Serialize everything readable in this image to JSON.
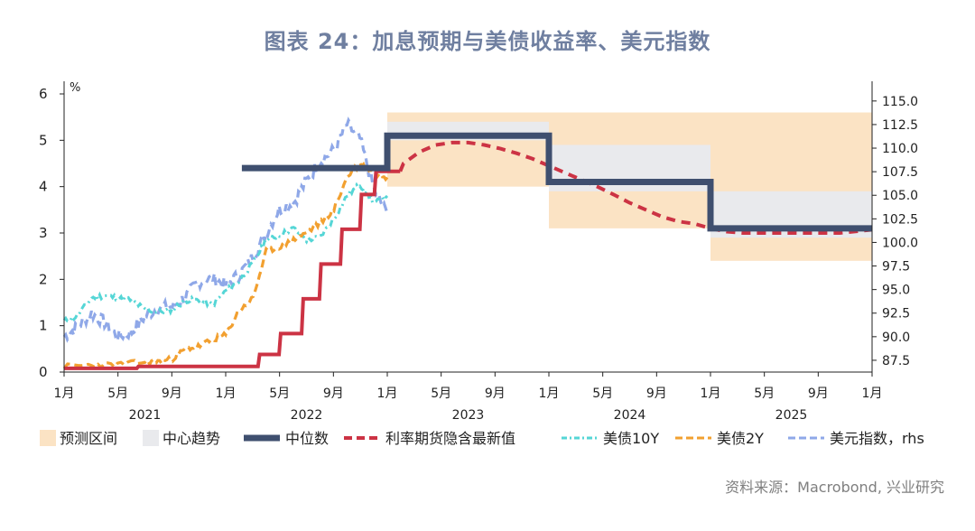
{
  "chart_data": {
    "type": "line",
    "title": "图表 24：加息预期与美债收益率、美元指数",
    "y_left_unit": "%",
    "y_left_range": [
      0,
      6
    ],
    "y_left_ticks": [
      "0",
      "1",
      "2",
      "3",
      "4",
      "5",
      "6"
    ],
    "y_right_range": [
      86.25,
      115.75
    ],
    "y_right_ticks": [
      "87.5",
      "90.0",
      "92.5",
      "95.0",
      "97.5",
      "100.0",
      "102.5",
      "105.0",
      "107.5",
      "110.0",
      "112.5",
      "115.0"
    ],
    "x_range": [
      "2021-01",
      "2026-01"
    ],
    "x_tick_labels": [
      "1月",
      "5月",
      "9月",
      "1月",
      "5月",
      "9月",
      "1月",
      "5月",
      "9月",
      "1月",
      "5月",
      "9月",
      "1月",
      "5月",
      "9月",
      "1月"
    ],
    "x_year_labels": [
      "2021",
      "2022",
      "2023",
      "2024",
      "2025"
    ],
    "legend": {
      "placement": "bottom",
      "entries": [
        "预测区间",
        "中心趋势",
        "中位数",
        "利率期货隐含最新值",
        "美债10Y",
        "美债2Y",
        "美元指数，rhs"
      ]
    },
    "colors": {
      "forecast_range": "#fbe3c4",
      "central_tendency": "#e9eaed",
      "median": "#3f4f6f",
      "futures": "#cc3344",
      "ust10y": "#55d6d6",
      "ust2y": "#f2a030",
      "dxy": "#8fa8e8"
    },
    "forecast_range": [
      {
        "x_start": 2023.0,
        "x_end": 2024.0,
        "low": 4.0,
        "high": 5.6
      },
      {
        "x_start": 2024.0,
        "x_end": 2025.0,
        "low": 3.1,
        "high": 5.6
      },
      {
        "x_start": 2025.0,
        "x_end": 2026.0,
        "low": 2.4,
        "high": 5.6
      }
    ],
    "central_tendency": [
      {
        "x_start": 2023.0,
        "x_end": 2024.0,
        "low": 5.0,
        "high": 5.4
      },
      {
        "x_start": 2024.0,
        "x_end": 2025.0,
        "low": 3.9,
        "high": 4.9
      },
      {
        "x_start": 2025.0,
        "x_end": 2026.0,
        "low": 2.9,
        "high": 3.9
      }
    ],
    "median_dots": [
      {
        "x_start": 2022.0,
        "x_end": 2023.0,
        "value": 4.4
      },
      {
        "x_start": 2023.0,
        "x_end": 2024.0,
        "value": 5.1
      },
      {
        "x_start": 2024.0,
        "x_end": 2025.0,
        "value": 4.1
      },
      {
        "x_start": 2025.0,
        "x_end": 2026.0,
        "value": 3.1
      }
    ],
    "futures_implied": [
      [
        2021.0,
        0.08
      ],
      [
        2021.2,
        0.08
      ],
      [
        2021.45,
        0.08
      ],
      [
        2021.46,
        0.12
      ],
      [
        2022.0,
        0.12
      ],
      [
        2022.2,
        0.12
      ],
      [
        2022.21,
        0.38
      ],
      [
        2022.33,
        0.38
      ],
      [
        2022.34,
        0.83
      ],
      [
        2022.47,
        0.83
      ],
      [
        2022.48,
        1.58
      ],
      [
        2022.58,
        1.58
      ],
      [
        2022.59,
        2.33
      ],
      [
        2022.71,
        2.33
      ],
      [
        2022.72,
        3.08
      ],
      [
        2022.83,
        3.08
      ],
      [
        2022.84,
        3.83
      ],
      [
        2022.92,
        3.83
      ],
      [
        2022.93,
        4.33
      ],
      [
        2023.08,
        4.33
      ],
      [
        2023.1,
        4.5
      ],
      [
        2023.2,
        4.75
      ],
      [
        2023.3,
        4.9
      ],
      [
        2023.4,
        4.95
      ],
      [
        2023.5,
        4.95
      ],
      [
        2023.6,
        4.9
      ],
      [
        2023.7,
        4.82
      ],
      [
        2023.8,
        4.72
      ],
      [
        2023.9,
        4.6
      ],
      [
        2024.0,
        4.45
      ],
      [
        2024.1,
        4.3
      ],
      [
        2024.2,
        4.15
      ],
      [
        2024.3,
        4.0
      ],
      [
        2024.4,
        3.83
      ],
      [
        2024.5,
        3.65
      ],
      [
        2024.6,
        3.5
      ],
      [
        2024.7,
        3.35
      ],
      [
        2024.8,
        3.25
      ],
      [
        2024.9,
        3.2
      ],
      [
        2025.0,
        3.1
      ],
      [
        2025.1,
        3.03
      ],
      [
        2025.2,
        3.0
      ],
      [
        2025.5,
        3.0
      ],
      [
        2025.8,
        3.0
      ],
      [
        2026.0,
        3.07
      ]
    ],
    "ust10y": [
      [
        2021.0,
        1.1
      ],
      [
        2021.08,
        1.2
      ],
      [
        2021.17,
        1.6
      ],
      [
        2021.25,
        1.65
      ],
      [
        2021.33,
        1.6
      ],
      [
        2021.42,
        1.55
      ],
      [
        2021.5,
        1.35
      ],
      [
        2021.58,
        1.3
      ],
      [
        2021.67,
        1.35
      ],
      [
        2021.75,
        1.55
      ],
      [
        2021.83,
        1.55
      ],
      [
        2021.92,
        1.45
      ],
      [
        2022.0,
        1.75
      ],
      [
        2022.08,
        1.95
      ],
      [
        2022.17,
        2.35
      ],
      [
        2022.25,
        2.85
      ],
      [
        2022.33,
        2.95
      ],
      [
        2022.42,
        3.1
      ],
      [
        2022.5,
        2.85
      ],
      [
        2022.58,
        2.9
      ],
      [
        2022.67,
        3.3
      ],
      [
        2022.75,
        3.8
      ],
      [
        2022.83,
        4.05
      ],
      [
        2022.92,
        3.65
      ],
      [
        2023.0,
        3.8
      ]
    ],
    "ust2y": [
      [
        2021.0,
        0.12
      ],
      [
        2021.17,
        0.15
      ],
      [
        2021.33,
        0.16
      ],
      [
        2021.5,
        0.22
      ],
      [
        2021.58,
        0.22
      ],
      [
        2021.67,
        0.28
      ],
      [
        2021.75,
        0.5
      ],
      [
        2021.83,
        0.55
      ],
      [
        2021.92,
        0.7
      ],
      [
        2022.0,
        0.8
      ],
      [
        2022.08,
        1.3
      ],
      [
        2022.17,
        1.6
      ],
      [
        2022.25,
        2.6
      ],
      [
        2022.33,
        2.7
      ],
      [
        2022.42,
        2.85
      ],
      [
        2022.5,
        3.0
      ],
      [
        2022.58,
        3.2
      ],
      [
        2022.67,
        3.5
      ],
      [
        2022.75,
        4.2
      ],
      [
        2022.83,
        4.5
      ],
      [
        2022.92,
        4.3
      ],
      [
        2023.0,
        4.2
      ]
    ],
    "dxy": [
      [
        2021.0,
        90.0
      ],
      [
        2021.08,
        91.0
      ],
      [
        2021.17,
        92.5
      ],
      [
        2021.25,
        91.5
      ],
      [
        2021.33,
        90.0
      ],
      [
        2021.42,
        90.5
      ],
      [
        2021.5,
        92.2
      ],
      [
        2021.58,
        93.0
      ],
      [
        2021.67,
        93.2
      ],
      [
        2021.75,
        94.2
      ],
      [
        2021.83,
        95.8
      ],
      [
        2021.92,
        96.2
      ],
      [
        2022.0,
        95.5
      ],
      [
        2022.08,
        96.5
      ],
      [
        2022.17,
        98.5
      ],
      [
        2022.25,
        101.0
      ],
      [
        2022.33,
        103.5
      ],
      [
        2022.42,
        104.2
      ],
      [
        2022.5,
        106.5
      ],
      [
        2022.58,
        108.5
      ],
      [
        2022.67,
        109.8
      ],
      [
        2022.75,
        112.5
      ],
      [
        2022.83,
        111.0
      ],
      [
        2022.92,
        105.5
      ],
      [
        2023.0,
        103.0
      ]
    ]
  },
  "source_note": "资料来源：Macrobond, 兴业研究"
}
